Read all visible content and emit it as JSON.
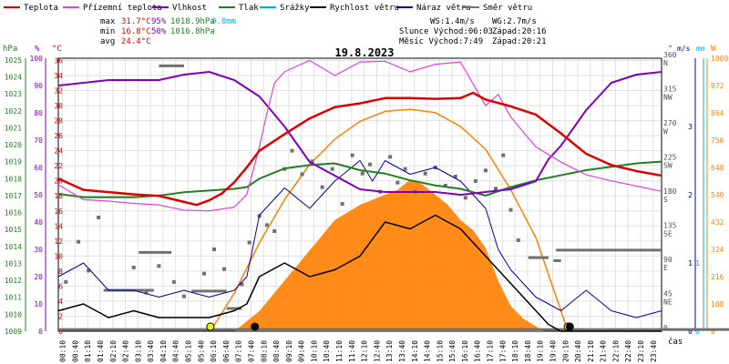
{
  "chart_data": {
    "type": "line",
    "title": "19.8.2023",
    "legend": [
      {
        "key": "teplota",
        "label": "Teplota",
        "color": "#e00000"
      },
      {
        "key": "prizemni",
        "label": "Přízemní teplota",
        "color": "#e040e0"
      },
      {
        "key": "vlhkost",
        "label": "Vlhkost",
        "color": "#8000c0"
      },
      {
        "key": "tlak",
        "label": "Tlak",
        "color": "#208020"
      },
      {
        "key": "srazky",
        "label": "Srážky",
        "color": "#00b0e0"
      },
      {
        "key": "rychlost",
        "label": "Rychlost větru",
        "color": "#000000"
      },
      {
        "key": "naraz",
        "label": "Náraz větru",
        "color": "#0000a0"
      },
      {
        "key": "smer",
        "label": "Směr větru",
        "color": "#707070"
      }
    ],
    "stats": {
      "max_label": "max",
      "min_label": "min",
      "avg_label": "avg",
      "max_temp": "31.7°C",
      "max_hum": "95%",
      "max_press": "1018.9hPa",
      "rain": "0.0mm",
      "min_temp": "16.8°C",
      "min_hum": "50%",
      "min_press": "1016.8hPa",
      "avg_temp": "24.4°C"
    },
    "wind_info": {
      "ws": "WS:1.4m/s",
      "wg": "WG:2.7m/s"
    },
    "sun_info": {
      "sunrise": "Slunce Východ:06:03",
      "sunset": "Západ:20:16"
    },
    "moon_info": {
      "rise": "Měsíc  Východ:7:49",
      "set": "Západ:20:21"
    },
    "axes": {
      "hpa_unit": "hPa",
      "pct_unit": "%",
      "c_unit": "°C",
      "dir_unit": "°",
      "ms_unit": "m/s",
      "mm_unit": "mm",
      "w_unit": "W",
      "x_unit": "čas",
      "hpa_ticks": [
        1009,
        1010,
        1011,
        1012,
        1013,
        1014,
        1015,
        1016,
        1017,
        1018,
        1019,
        1020,
        1021,
        1022,
        1023,
        1024,
        1025
      ],
      "pct_ticks": [
        0,
        10,
        20,
        30,
        40,
        50,
        60,
        70,
        80,
        90,
        100
      ],
      "c_ticks": [
        0,
        2,
        4,
        6,
        8,
        10,
        12,
        14,
        16,
        18,
        20,
        22,
        24,
        26,
        28,
        30,
        32,
        34,
        36
      ],
      "dir_ticks": [
        {
          "v": "0",
          "s": ""
        },
        {
          "v": "45",
          "s": "NE"
        },
        {
          "v": "90",
          "s": "E"
        },
        {
          "v": "135",
          "s": "SE"
        },
        {
          "v": "180",
          "s": "S"
        },
        {
          "v": "225",
          "s": "SW"
        },
        {
          "v": "270",
          "s": "W"
        },
        {
          "v": "315",
          "s": "NW"
        },
        {
          "v": "360",
          "s": "N"
        }
      ],
      "ms_ticks": [
        0,
        1,
        2,
        3
      ],
      "mm_ticks": [
        0,
        1
      ],
      "w_ticks": [
        0,
        108,
        216,
        324,
        432,
        540,
        648,
        756,
        864,
        972,
        1080
      ],
      "temp_range": [
        0,
        36.3
      ],
      "hum_range": [
        0,
        100
      ],
      "wind_range": [
        0,
        4
      ],
      "w_range": [
        0,
        1080
      ],
      "dir_range": [
        0,
        360
      ],
      "x_labels": [
        "00:10",
        "00:40",
        "01:10",
        "01:40",
        "02:10",
        "02:40",
        "03:10",
        "03:40",
        "04:10",
        "04:40",
        "05:10",
        "05:40",
        "06:10",
        "06:40",
        "07:10",
        "07:40",
        "08:10",
        "08:40",
        "09:10",
        "09:40",
        "10:10",
        "10:40",
        "11:10",
        "11:40",
        "12:10",
        "12:40",
        "13:10",
        "13:40",
        "14:10",
        "14:40",
        "15:10",
        "15:40",
        "16:10",
        "16:40",
        "17:10",
        "17:40",
        "18:10",
        "18:40",
        "19:10",
        "19:40",
        "20:10",
        "20:40",
        "21:10",
        "21:40",
        "22:10",
        "22:40",
        "23:10",
        "23:40"
      ]
    },
    "series": {
      "teplota": {
        "x": [
          0,
          1,
          2,
          3,
          4,
          5,
          5.5,
          6,
          6.5,
          7,
          7.5,
          8,
          9,
          10,
          11,
          12,
          13,
          14,
          15,
          16,
          16.5,
          17,
          18,
          19,
          20,
          21,
          22,
          23,
          24
        ],
        "y": [
          20.3,
          18.8,
          18.5,
          18.2,
          18.0,
          17.2,
          16.8,
          17.4,
          18.3,
          19.8,
          21.8,
          24.0,
          26.2,
          28.3,
          29.8,
          30.3,
          31.0,
          31.0,
          30.9,
          31.0,
          31.7,
          30.8,
          29.9,
          28.8,
          26.3,
          23.6,
          22.1,
          21.3,
          20.7
        ]
      },
      "prizemni": {
        "x": [
          0,
          1,
          2,
          3,
          4,
          5,
          6,
          7,
          7.5,
          8,
          8.3,
          8.6,
          9,
          10,
          11,
          12,
          13,
          14,
          15,
          16,
          17,
          17.5,
          18,
          19,
          20,
          21,
          22,
          23,
          24
        ],
        "y": [
          19.5,
          17.5,
          17.3,
          17.0,
          16.8,
          16.1,
          16.0,
          16.5,
          18.2,
          24.5,
          29.0,
          33.0,
          34.5,
          36.0,
          34.0,
          35.8,
          35.9,
          34.5,
          35.5,
          35.8,
          30.0,
          31.5,
          28.5,
          24.5,
          22.5,
          20.8,
          20.0,
          19.3,
          18.6
        ]
      },
      "vlhkost": {
        "x": [
          0,
          1,
          2,
          3,
          4,
          5,
          6,
          7,
          8,
          9,
          10,
          11,
          12,
          13,
          14,
          15,
          16,
          17,
          18,
          19,
          19.5,
          20,
          21,
          22,
          23,
          24
        ],
        "y": [
          90,
          91,
          92,
          92,
          92,
          94,
          95,
          92,
          86,
          75,
          62,
          57,
          52,
          51,
          51,
          51,
          50,
          51,
          52,
          55,
          63,
          68,
          81,
          91,
          94,
          95
        ]
      },
      "tlak": {
        "x": [
          0,
          1,
          2,
          3,
          4,
          5,
          6,
          7,
          7.5,
          8,
          9,
          10,
          11,
          12,
          13,
          14,
          15,
          16,
          17,
          18,
          19,
          20,
          21,
          22,
          23,
          24
        ],
        "y": [
          1017.1,
          1016.9,
          1016.9,
          1016.9,
          1017.0,
          1017.2,
          1017.3,
          1017.4,
          1017.5,
          1018.0,
          1018.6,
          1018.8,
          1018.9,
          1018.5,
          1018.3,
          1017.9,
          1017.6,
          1017.4,
          1017.0,
          1017.5,
          1017.9,
          1018.2,
          1018.5,
          1018.7,
          1018.9,
          1019.0
        ]
      },
      "sun_curve": {
        "x": [
          6.05,
          7,
          8,
          9,
          10,
          11,
          12,
          13,
          14,
          15,
          16,
          17,
          18,
          19,
          20,
          20.27
        ],
        "y": [
          0,
          150,
          350,
          520,
          660,
          760,
          830,
          870,
          878,
          865,
          810,
          720,
          560,
          370,
          80,
          0
        ]
      },
      "radiation": {
        "x": [
          7.0,
          7.5,
          8,
          8.5,
          9,
          9.5,
          10,
          10.5,
          11,
          11.5,
          12,
          12.5,
          13,
          13.5,
          14,
          14.5,
          15,
          15.5,
          16,
          16.5,
          17,
          17.5,
          18,
          18.5,
          19,
          19.3
        ],
        "y": [
          0,
          40,
          80,
          140,
          200,
          260,
          320,
          380,
          440,
          470,
          500,
          520,
          540,
          560,
          600,
          580,
          540,
          500,
          440,
          400,
          330,
          200,
          100,
          50,
          20,
          0
        ]
      },
      "rychlost": {
        "x": [
          0,
          1,
          2,
          3,
          4,
          5,
          6,
          7,
          7.5,
          8,
          9,
          10,
          11,
          12,
          13,
          14,
          15,
          16,
          17,
          18,
          19,
          19.5,
          20,
          21,
          22,
          23,
          24
        ],
        "y": [
          0.3,
          0.4,
          0.2,
          0.3,
          0.2,
          0.2,
          0.2,
          0.3,
          0.4,
          0.8,
          1.0,
          0.8,
          0.9,
          1.1,
          1.6,
          1.5,
          1.7,
          1.5,
          1.1,
          0.7,
          0.3,
          0.1,
          0,
          0,
          0,
          0,
          0
        ]
      },
      "naraz": {
        "x": [
          0,
          1,
          2,
          3,
          4,
          5,
          6,
          7,
          7.5,
          8,
          9,
          10,
          10.5,
          11,
          12,
          12.5,
          13,
          14,
          15,
          16,
          17,
          17.5,
          18,
          19,
          20,
          21,
          22,
          23,
          24
        ],
        "y": [
          0.8,
          1.0,
          0.6,
          0.6,
          0.5,
          0.6,
          0.5,
          0.6,
          0.8,
          1.7,
          2.1,
          1.8,
          2.0,
          2.2,
          2.5,
          2.2,
          2.5,
          2.3,
          2.4,
          2.2,
          1.8,
          1.2,
          0.9,
          0.5,
          0.3,
          0.6,
          0.3,
          0.2,
          0.3
        ]
      },
      "smer_points": [
        [
          0.3,
          65
        ],
        [
          0.8,
          118
        ],
        [
          1.2,
          80
        ],
        [
          1.6,
          150
        ],
        [
          3.0,
          84
        ],
        [
          3.5,
          51
        ],
        [
          4.0,
          86
        ],
        [
          4.6,
          65
        ],
        [
          5.0,
          46
        ],
        [
          5.8,
          76
        ],
        [
          6.2,
          108
        ],
        [
          6.6,
          82
        ],
        [
          7.3,
          62
        ],
        [
          7.6,
          117
        ],
        [
          8.0,
          152
        ],
        [
          8.3,
          140
        ],
        [
          8.6,
          132
        ],
        [
          9.0,
          214
        ],
        [
          9.3,
          238
        ],
        [
          9.7,
          207
        ],
        [
          10.1,
          224
        ],
        [
          10.5,
          190
        ],
        [
          10.9,
          214
        ],
        [
          11.3,
          168
        ],
        [
          11.7,
          232
        ],
        [
          12.1,
          208
        ],
        [
          12.4,
          220
        ],
        [
          12.8,
          184
        ],
        [
          13.2,
          230
        ],
        [
          13.5,
          196
        ],
        [
          13.8,
          214
        ],
        [
          14.2,
          184
        ],
        [
          14.6,
          208
        ],
        [
          15.0,
          216
        ],
        [
          15.4,
          192
        ],
        [
          15.8,
          204
        ],
        [
          16.2,
          176
        ],
        [
          16.6,
          198
        ],
        [
          17.0,
          212
        ],
        [
          17.4,
          188
        ],
        [
          17.7,
          232
        ],
        [
          18.0,
          160
        ],
        [
          18.3,
          120
        ]
      ],
      "smer_bars": [
        [
          0,
          28,
          2.2,
          31
        ],
        [
          1.8,
          3.8,
          54
        ],
        [
          3.2,
          4.5,
          104
        ],
        [
          4.0,
          5.0,
          350
        ],
        [
          5.3,
          6.7,
          53
        ],
        [
          6.7,
          7.3,
          30
        ],
        [
          18.7,
          19.5,
          97
        ],
        [
          19.7,
          20.0,
          93
        ],
        [
          19.8,
          24,
          107
        ]
      ]
    },
    "markers": {
      "sunrise_h": 6.05,
      "sunset_h": 20.27,
      "moonrise_h": 7.82,
      "moonset_h": 20.35
    }
  }
}
